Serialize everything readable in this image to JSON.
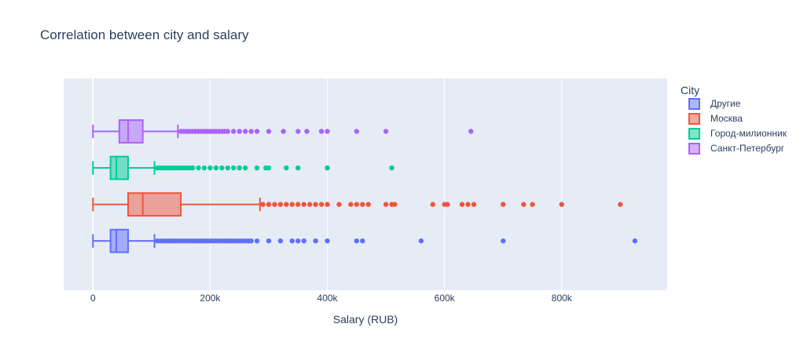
{
  "chart_data": {
    "type": "box",
    "orientation": "horizontal",
    "title": "Correlation between city and salary",
    "xlabel": "Salary (RUB)",
    "ylabel": "",
    "xlim": [
      -50000,
      980000
    ],
    "x_ticks": [
      {
        "value": 0,
        "label": "0"
      },
      {
        "value": 200000,
        "label": "200k"
      },
      {
        "value": 400000,
        "label": "400k"
      },
      {
        "value": 600000,
        "label": "600k"
      },
      {
        "value": 800000,
        "label": "800k"
      }
    ],
    "grid": true,
    "legend": {
      "title": "City",
      "placement": "right"
    },
    "series": [
      {
        "name": "Другие",
        "color": "#636efa",
        "fill": "rgba(99,110,250,0.5)",
        "min": 0,
        "q1": 30000,
        "median": 40000,
        "q3": 60000,
        "upper_fence": 105000,
        "outliers": [
          110000,
          115000,
          120000,
          125000,
          130000,
          135000,
          140000,
          145000,
          150000,
          155000,
          160000,
          165000,
          170000,
          175000,
          180000,
          185000,
          190000,
          195000,
          200000,
          205000,
          210000,
          215000,
          220000,
          225000,
          230000,
          235000,
          240000,
          245000,
          250000,
          255000,
          260000,
          265000,
          270000,
          280000,
          300000,
          320000,
          340000,
          350000,
          360000,
          380000,
          400000,
          450000,
          460000,
          560000,
          700000,
          925000
        ]
      },
      {
        "name": "Москва",
        "color": "#ef553b",
        "fill": "rgba(239,85,59,0.5)",
        "min": 0,
        "q1": 60000,
        "median": 85000,
        "q3": 150000,
        "upper_fence": 285000,
        "outliers": [
          290000,
          300000,
          310000,
          320000,
          330000,
          340000,
          350000,
          360000,
          370000,
          380000,
          390000,
          400000,
          420000,
          440000,
          450000,
          460000,
          470000,
          500000,
          510000,
          515000,
          580000,
          600000,
          605000,
          630000,
          640000,
          650000,
          700000,
          735000,
          750000,
          800000,
          900000
        ]
      },
      {
        "name": "Город-милионник",
        "color": "#00cc96",
        "fill": "rgba(0,204,150,0.5)",
        "min": 0,
        "q1": 30000,
        "median": 40000,
        "q3": 60000,
        "upper_fence": 105000,
        "outliers": [
          110000,
          115000,
          120000,
          125000,
          130000,
          135000,
          140000,
          145000,
          150000,
          155000,
          160000,
          165000,
          170000,
          180000,
          190000,
          200000,
          210000,
          220000,
          230000,
          240000,
          250000,
          260000,
          280000,
          295000,
          300000,
          330000,
          350000,
          400000,
          510000
        ]
      },
      {
        "name": "Санкт-Петербург",
        "color": "#ab63fa",
        "fill": "rgba(171,99,250,0.5)",
        "min": 0,
        "q1": 45000,
        "median": 60000,
        "q3": 85000,
        "upper_fence": 145000,
        "outliers": [
          150000,
          155000,
          160000,
          165000,
          170000,
          175000,
          180000,
          185000,
          190000,
          195000,
          200000,
          205000,
          210000,
          215000,
          220000,
          225000,
          230000,
          240000,
          250000,
          260000,
          270000,
          280000,
          300000,
          325000,
          350000,
          365000,
          390000,
          400000,
          450000,
          500000,
          645000
        ]
      }
    ]
  }
}
